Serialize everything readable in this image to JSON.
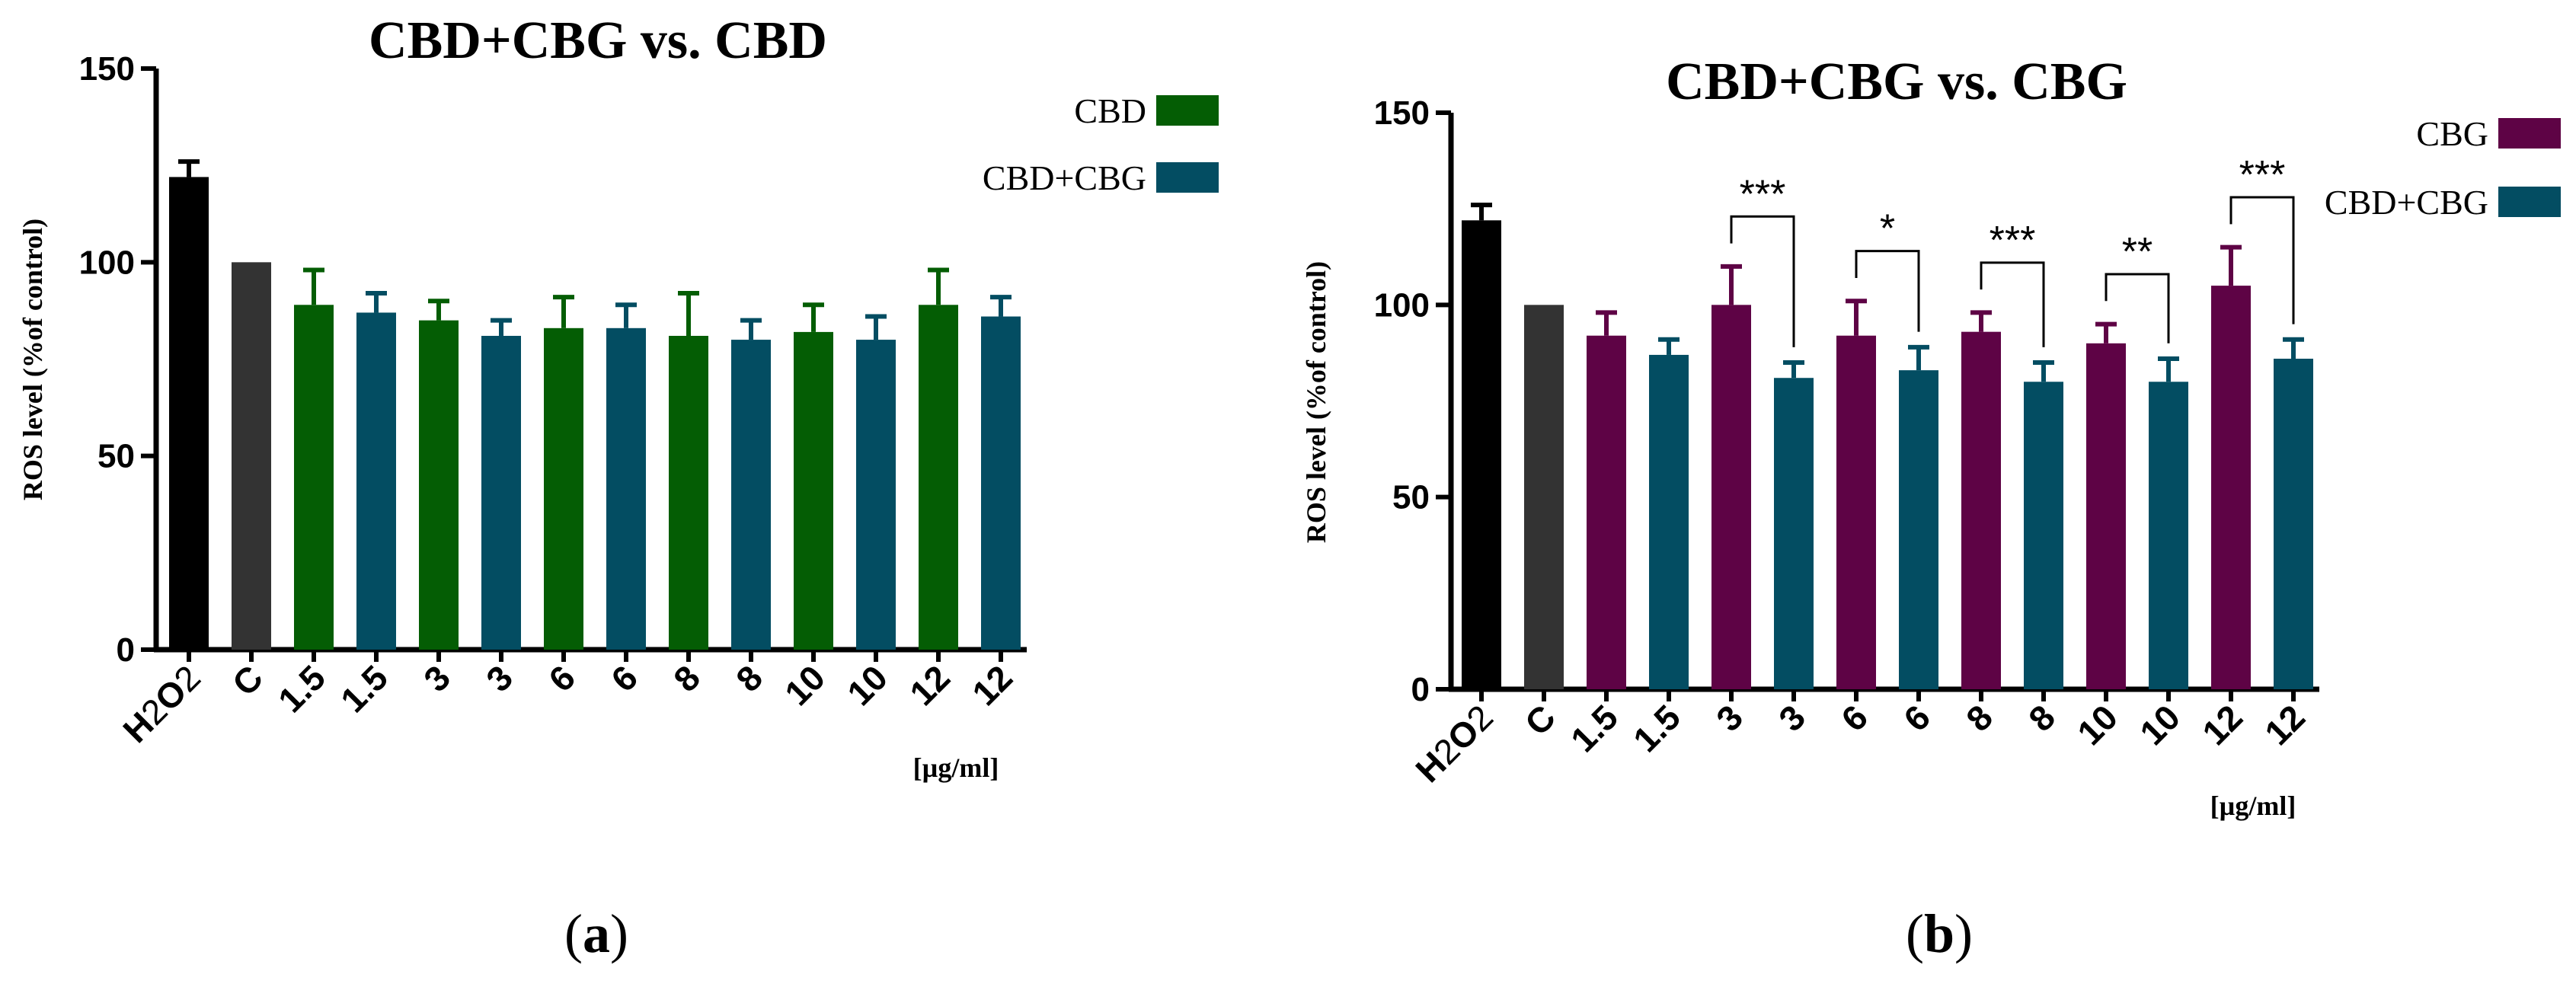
{
  "colors": {
    "h2o2": "#000000",
    "control": "#333333",
    "cbd": "#045d04",
    "cbg": "#5e0345",
    "combo": "#034d62"
  },
  "chart_data": [
    {
      "type": "bar",
      "panel": "(a)",
      "title": "CBD+CBG vs. CBD",
      "ylabel": "ROS level (%of control)",
      "xlabel": "",
      "unit_label": "[µg/ml]",
      "ylim": [
        0,
        150
      ],
      "yticks": [
        "0",
        "50",
        "100",
        "150"
      ],
      "grid": false,
      "legend_position": "top-right",
      "legend": [
        {
          "label": "CBD",
          "color": "#045d04"
        },
        {
          "label": "CBD+CBG",
          "color": "#034d62"
        }
      ],
      "categories": [
        "H2O2",
        "C",
        "1.5",
        "1.5",
        "3",
        "3",
        "6",
        "6",
        "8",
        "8",
        "10",
        "10",
        "12",
        "12"
      ],
      "values": [
        122,
        100,
        89,
        87,
        85,
        81,
        83,
        83,
        81,
        80,
        82,
        80,
        89,
        86
      ],
      "errors": [
        4,
        0,
        9,
        5,
        5,
        4,
        8,
        6,
        11,
        5,
        7,
        6,
        9,
        5
      ],
      "series_keys": [
        "h2o2",
        "control",
        "cbd",
        "combo",
        "cbd",
        "combo",
        "cbd",
        "combo",
        "cbd",
        "combo",
        "cbd",
        "combo",
        "cbd",
        "combo"
      ],
      "significance": []
    },
    {
      "type": "bar",
      "panel": "(b)",
      "title": "CBD+CBG vs. CBG",
      "ylabel": "ROS level (%of control)",
      "xlabel": "",
      "unit_label": "[µg/ml]",
      "ylim": [
        0,
        150
      ],
      "yticks": [
        "0",
        "50",
        "100",
        "150"
      ],
      "grid": false,
      "legend_position": "top-right",
      "legend": [
        {
          "label": "CBG",
          "color": "#5e0345"
        },
        {
          "label": "CBD+CBG",
          "color": "#034d62"
        }
      ],
      "categories": [
        "H2O2",
        "C",
        "1.5",
        "1.5",
        "3",
        "3",
        "6",
        "6",
        "8",
        "8",
        "10",
        "10",
        "12",
        "12"
      ],
      "values": [
        122,
        100,
        92,
        87,
        100,
        81,
        92,
        83,
        93,
        80,
        90,
        80,
        105,
        86
      ],
      "errors": [
        4,
        0,
        6,
        4,
        10,
        4,
        9,
        6,
        5,
        5,
        5,
        6,
        10,
        5
      ],
      "series_keys": [
        "h2o2",
        "control",
        "cbg",
        "combo",
        "cbg",
        "combo",
        "cbg",
        "combo",
        "cbg",
        "combo",
        "cbg",
        "combo",
        "cbg",
        "combo"
      ],
      "significance": [
        {
          "from": 4,
          "to": 5,
          "label": "***"
        },
        {
          "from": 6,
          "to": 7,
          "label": "*"
        },
        {
          "from": 8,
          "to": 9,
          "label": "***"
        },
        {
          "from": 10,
          "to": 11,
          "label": "**"
        },
        {
          "from": 12,
          "to": 13,
          "label": "***"
        }
      ]
    }
  ]
}
